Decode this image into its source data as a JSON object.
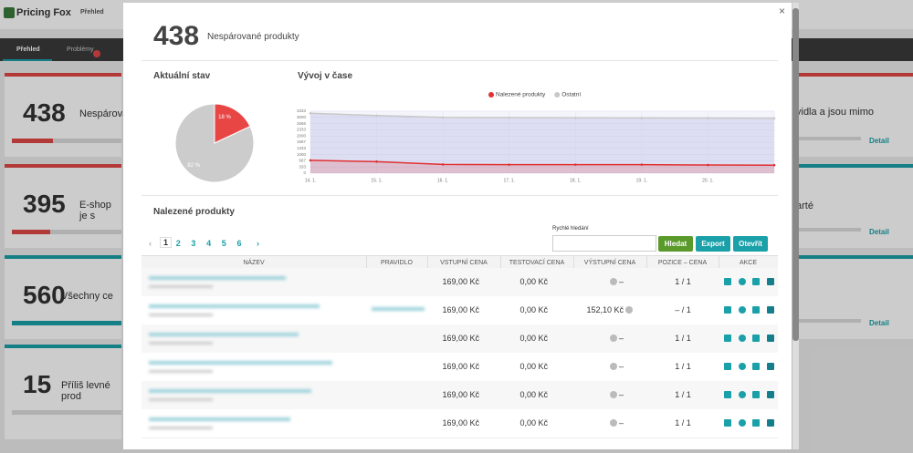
{
  "background": {
    "brand": "Pricing Fox",
    "nav": "Přehled",
    "tabs": [
      "Přehled",
      "Problémy"
    ],
    "cards": [
      {
        "number": "438",
        "text": "Nespárovan"
      },
      {
        "number": "395",
        "text": "E-shop je s"
      },
      {
        "number": "560",
        "text": "Všechny ce"
      },
      {
        "number": "15",
        "text": "Příliš levné prod"
      }
    ],
    "right_cards": [
      {
        "text": "vidla a jsou mimo",
        "link": "Detail"
      },
      {
        "text": "arté",
        "link": "Detail"
      },
      {
        "link": "Detail"
      }
    ]
  },
  "modal": {
    "count": "438",
    "title": "Nespárované produkty",
    "close": "×"
  },
  "pie": {
    "type": "pie",
    "title": "Aktuální stav",
    "values": [
      18,
      82
    ],
    "value_labels": [
      "18 %",
      "82 %"
    ],
    "colors": [
      "#e84545",
      "#cccccc"
    ]
  },
  "chart_data": {
    "type": "line",
    "title": "Vývoj v čase",
    "categories": [
      "14. 1.",
      "15. 1.",
      "16. 1.",
      "17. 1.",
      "18. 1.",
      "19. 1.",
      "20. 1.",
      null
    ],
    "series": [
      {
        "name": "Nalezené produkty",
        "color": "#e03030",
        "values": [
          690,
          620,
          470,
          460,
          460,
          460,
          440,
          430
        ]
      },
      {
        "name": "Ostatní",
        "color": "#c8c8c8",
        "values": [
          3220,
          3100,
          3000,
          2990,
          2980,
          2970,
          2960,
          2950
        ]
      }
    ],
    "ylim": [
      0,
      3333
    ],
    "yticks": [
      0,
      333,
      667,
      1000,
      1333,
      1667,
      2000,
      2333,
      2666,
      3000,
      3333
    ],
    "grid": true
  },
  "table": {
    "title": "Nalezené produkty",
    "pages": [
      "1",
      "2",
      "3",
      "4",
      "5",
      "6"
    ],
    "search_label": "Rychlé hledání",
    "buttons": [
      "Hledat",
      "Export",
      "Otevřít"
    ],
    "columns": [
      "NÁZEV",
      "PRAVIDLO",
      "VSTUPNÍ CENA",
      "TESTOVACÍ CENA",
      "VÝSTUPNÍ CENA",
      "POZICE – CENA",
      "AKCE"
    ],
    "rows": [
      [
        "169,00 Kč",
        "0,00 Kč",
        "–",
        "1 / 1"
      ],
      [
        "169,00 Kč",
        "0,00 Kč",
        "152,10 Kč",
        "– / 1"
      ],
      [
        "169,00 Kč",
        "0,00 Kč",
        "–",
        "1 / 1"
      ],
      [
        "169,00 Kč",
        "0,00 Kč",
        "–",
        "1 / 1"
      ],
      [
        "169,00 Kč",
        "0,00 Kč",
        "–",
        "1 / 1"
      ],
      [
        "169,00 Kč",
        "0,00 Kč",
        "–",
        "1 / 1"
      ]
    ]
  }
}
